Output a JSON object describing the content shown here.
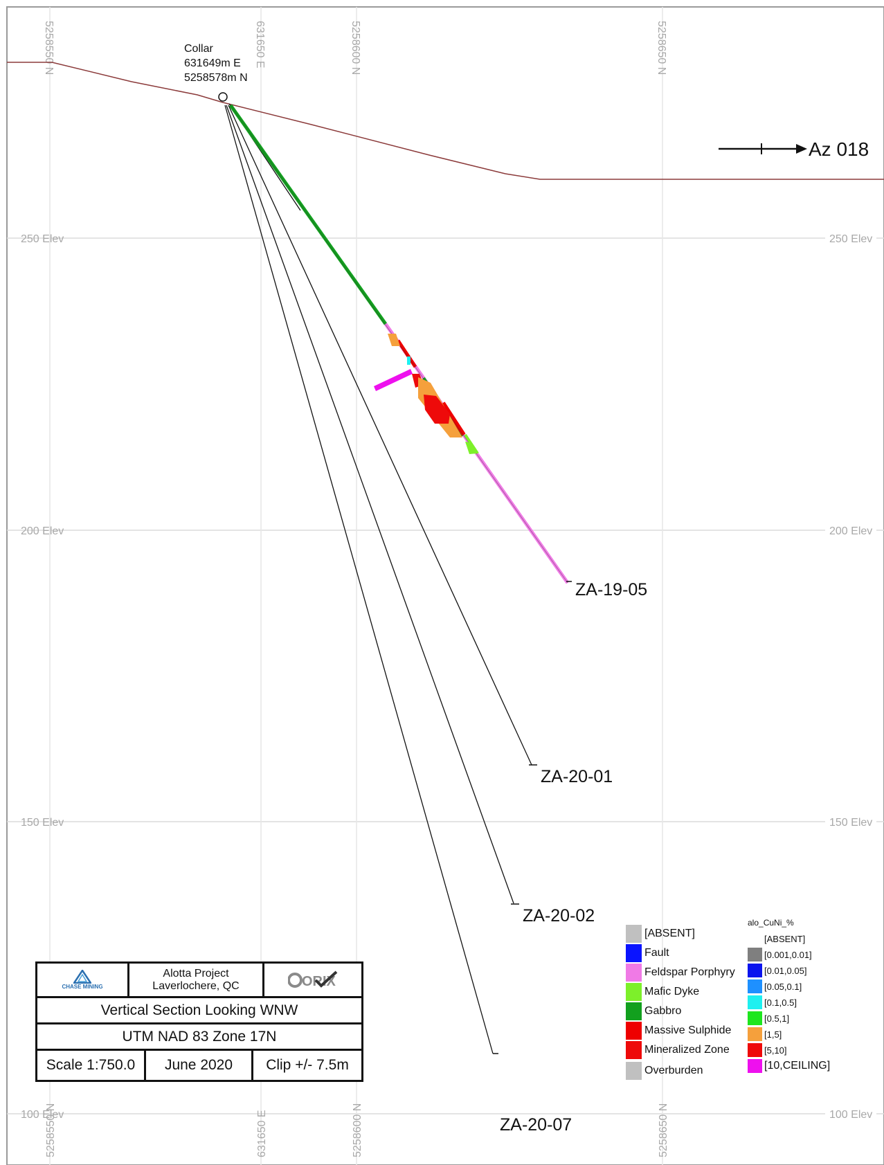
{
  "grid": {
    "northings_top": [
      "5258550 N",
      "5258600 N",
      "5258650 N"
    ],
    "easting_top": "631650 E",
    "northings_bottom": [
      "5258550 N",
      "5258600 N",
      "5258650 N"
    ],
    "easting_bottom": "631650 E",
    "elevations": [
      "250 Elev",
      "200 Elev",
      "150 Elev",
      "100 Elev"
    ]
  },
  "collar": {
    "label": "Collar",
    "easting": "631649m E",
    "northing": "5258578m N"
  },
  "azimuth": {
    "label": "Az 018"
  },
  "drill_holes": [
    {
      "id": "ZA-19-05"
    },
    {
      "id": "ZA-20-01"
    },
    {
      "id": "ZA-20-02"
    },
    {
      "id": "ZA-20-07"
    }
  ],
  "title_block": {
    "company_logo": "CHASE MINING",
    "project": "Alotta Project",
    "location": "Laverlochere, QC",
    "partner_logo": "ORIX",
    "section": "Vertical Section Looking WNW",
    "projection": "UTM NAD 83 Zone 17N",
    "scale": "Scale 1:750.0",
    "date": "June 2020",
    "clip": "Clip +/- 7.5m"
  },
  "lithology_legend": [
    {
      "label": "[ABSENT]",
      "color": "#c0c0c0"
    },
    {
      "label": "Fault",
      "color": "#0a14ff"
    },
    {
      "label": "Feldspar Porphyry",
      "color": "#f07ae6"
    },
    {
      "label": "Mafic Dyke",
      "color": "#7df02a"
    },
    {
      "label": "Gabbro",
      "color": "#12a01e"
    },
    {
      "label": "Massive Sulphide",
      "color": "#ee0000"
    },
    {
      "label": "Mineralized Zone",
      "color": "#ee0a0a"
    },
    {
      "label": "Overburden",
      "color": "#c0c0c0"
    }
  ],
  "assay_legend": {
    "title": "alo_CuNi_%",
    "items": [
      {
        "label": "[ABSENT]",
        "color": "#ffffff"
      },
      {
        "label": "[0.001,0.01]",
        "color": "#7f7f7f"
      },
      {
        "label": "[0.01,0.05]",
        "color": "#0a14ee"
      },
      {
        "label": "[0.05,0.1]",
        "color": "#1e90ff"
      },
      {
        "label": "[0.1,0.5]",
        "color": "#1ef0f0"
      },
      {
        "label": "[0.5,1]",
        "color": "#1ee61e"
      },
      {
        "label": "[1,5]",
        "color": "#f5a03c"
      },
      {
        "label": "[5,10]",
        "color": "#ee0a0a"
      },
      {
        "label": "[10,CEILING]",
        "color": "#ee10ee"
      }
    ]
  }
}
